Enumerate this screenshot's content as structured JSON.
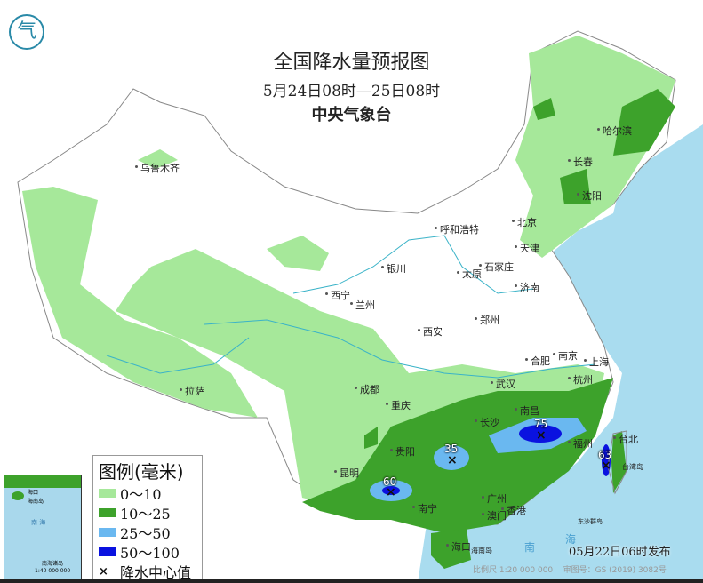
{
  "title": "全国降水量预报图",
  "period": "5月24日08时—25日08时",
  "issuer": "中央气象台",
  "logo_icon": "cma-logo-icon",
  "issue_time": "05月22日06时发布",
  "scale_note": "比例尺 1:20 000 000",
  "map_approval": "审图号：GS (2019) 3082号",
  "legend": {
    "title": "图例(毫米)",
    "items": [
      {
        "label": "0～10",
        "color": "#a6e89a"
      },
      {
        "label": "10～25",
        "color": "#3da22b"
      },
      {
        "label": "25～50",
        "color": "#6ab8f0"
      },
      {
        "label": "50～100",
        "color": "#0a12e0"
      }
    ],
    "center_label": "降水中心值",
    "center_symbol": "×"
  },
  "colors": {
    "sea": "#a9dcef",
    "land": "#ffffff",
    "border": "#888888"
  },
  "inset": {
    "sea_label": "南 海",
    "island_label": "海南岛",
    "city": "海口",
    "islands": "南海诸岛",
    "scale": "1:40 000 000"
  },
  "sea_labels": [
    "南",
    "海"
  ],
  "islands_labels": {
    "hainan": "海南岛",
    "dongsha": "东沙群岛",
    "taiwan": "台湾岛"
  },
  "rain_centers": [
    {
      "value": "75",
      "location": "江西南部"
    },
    {
      "value": "35",
      "location": "湖南西南部"
    },
    {
      "value": "60",
      "location": "广西西南部"
    },
    {
      "value": "63",
      "location": "台湾"
    }
  ],
  "cities": [
    "乌鲁木齐",
    "哈尔滨",
    "长春",
    "沈阳",
    "北京",
    "天津",
    "呼和浩特",
    "石家庄",
    "太原",
    "济南",
    "银川",
    "西宁",
    "兰州",
    "郑州",
    "西安",
    "合肥",
    "南京",
    "上海",
    "杭州",
    "武汉",
    "拉萨",
    "成都",
    "重庆",
    "长沙",
    "南昌",
    "福州",
    "台北",
    "贵阳",
    "昆明",
    "南宁",
    "广州",
    "澳门",
    "香港",
    "海口"
  ]
}
